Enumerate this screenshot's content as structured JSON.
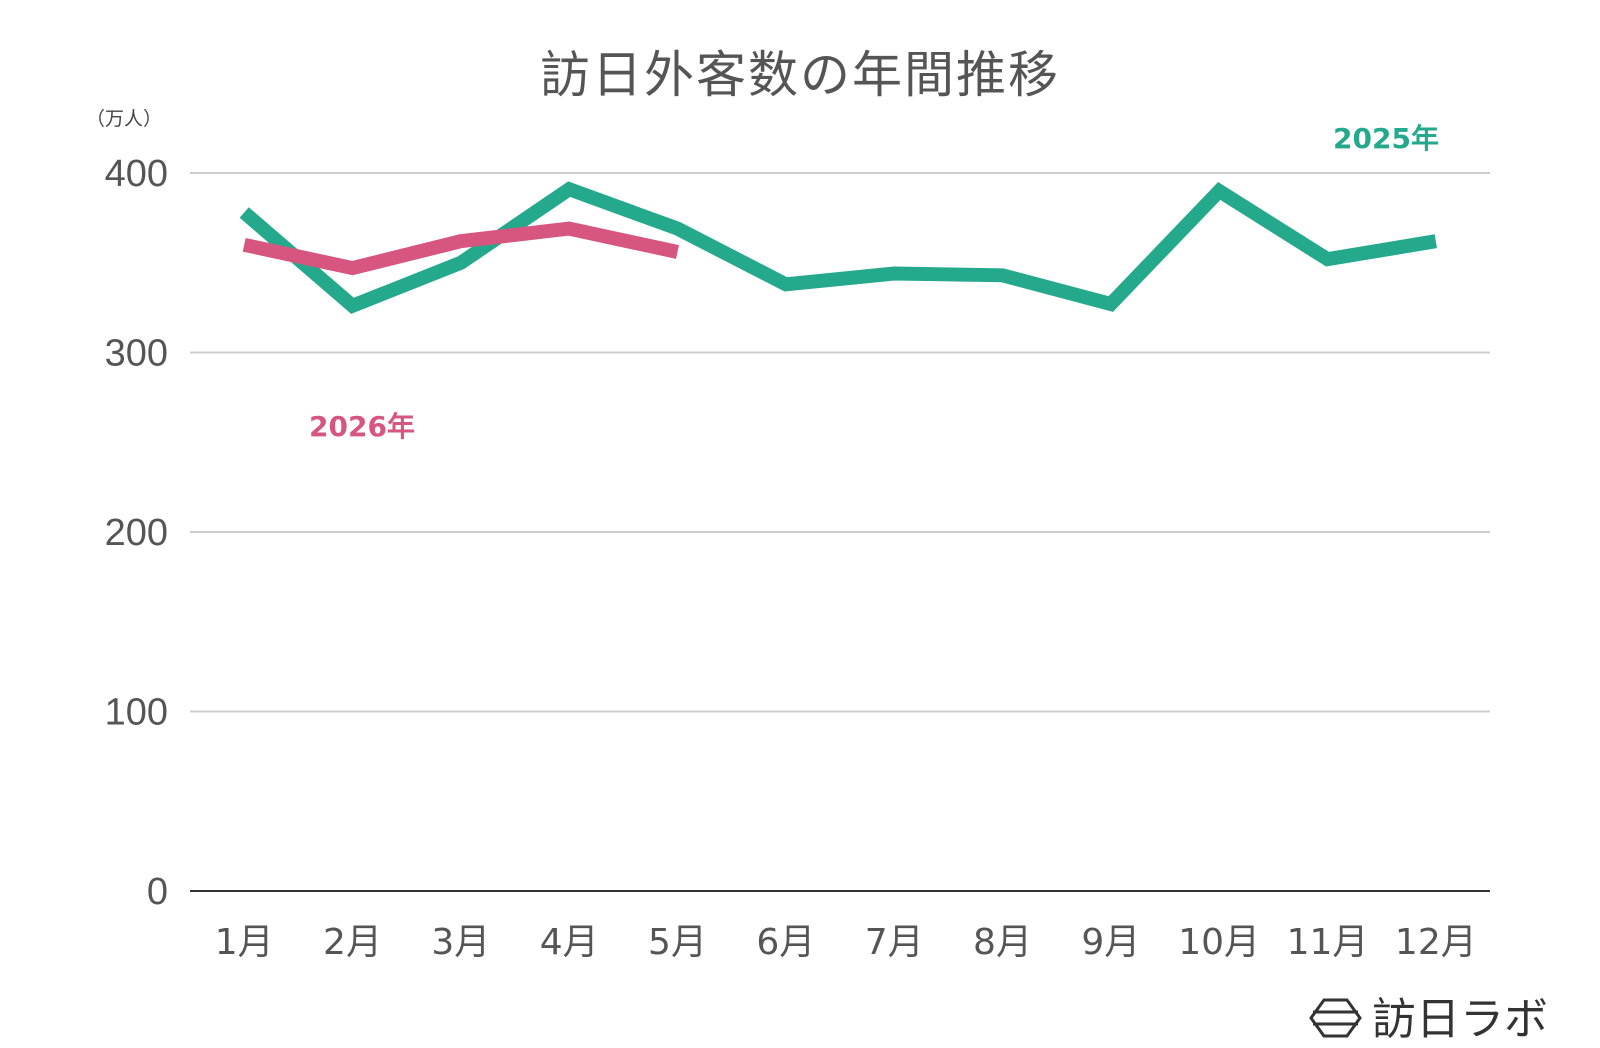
{
  "chart_data": {
    "type": "line",
    "title": "訪日外客数の年間推移",
    "unit_label": "（万人）",
    "xlabel": "",
    "ylabel": "",
    "ylim": [
      0,
      400
    ],
    "yticks": [
      0,
      100,
      200,
      300,
      400
    ],
    "ytick_labels": [
      "0",
      "100",
      "200",
      "300",
      "400"
    ],
    "grid": true,
    "categories": [
      "1月",
      "2月",
      "3月",
      "4月",
      "5月",
      "6月",
      "7月",
      "8月",
      "9月",
      "10月",
      "11月",
      "12月"
    ],
    "series": [
      {
        "name": "2025年",
        "color": "#25a98c",
        "values": [
          378,
          326,
          350,
          391,
          369,
          338,
          344,
          343,
          327,
          390,
          352,
          362
        ]
      },
      {
        "name": "2026年",
        "color": "#d6567f",
        "values": [
          360,
          347,
          362,
          369,
          356,
          null,
          null,
          null,
          null,
          null,
          null,
          null
        ]
      }
    ]
  },
  "logo": {
    "text": "訪日ラボ",
    "icon": "hexagon-logo-icon"
  }
}
